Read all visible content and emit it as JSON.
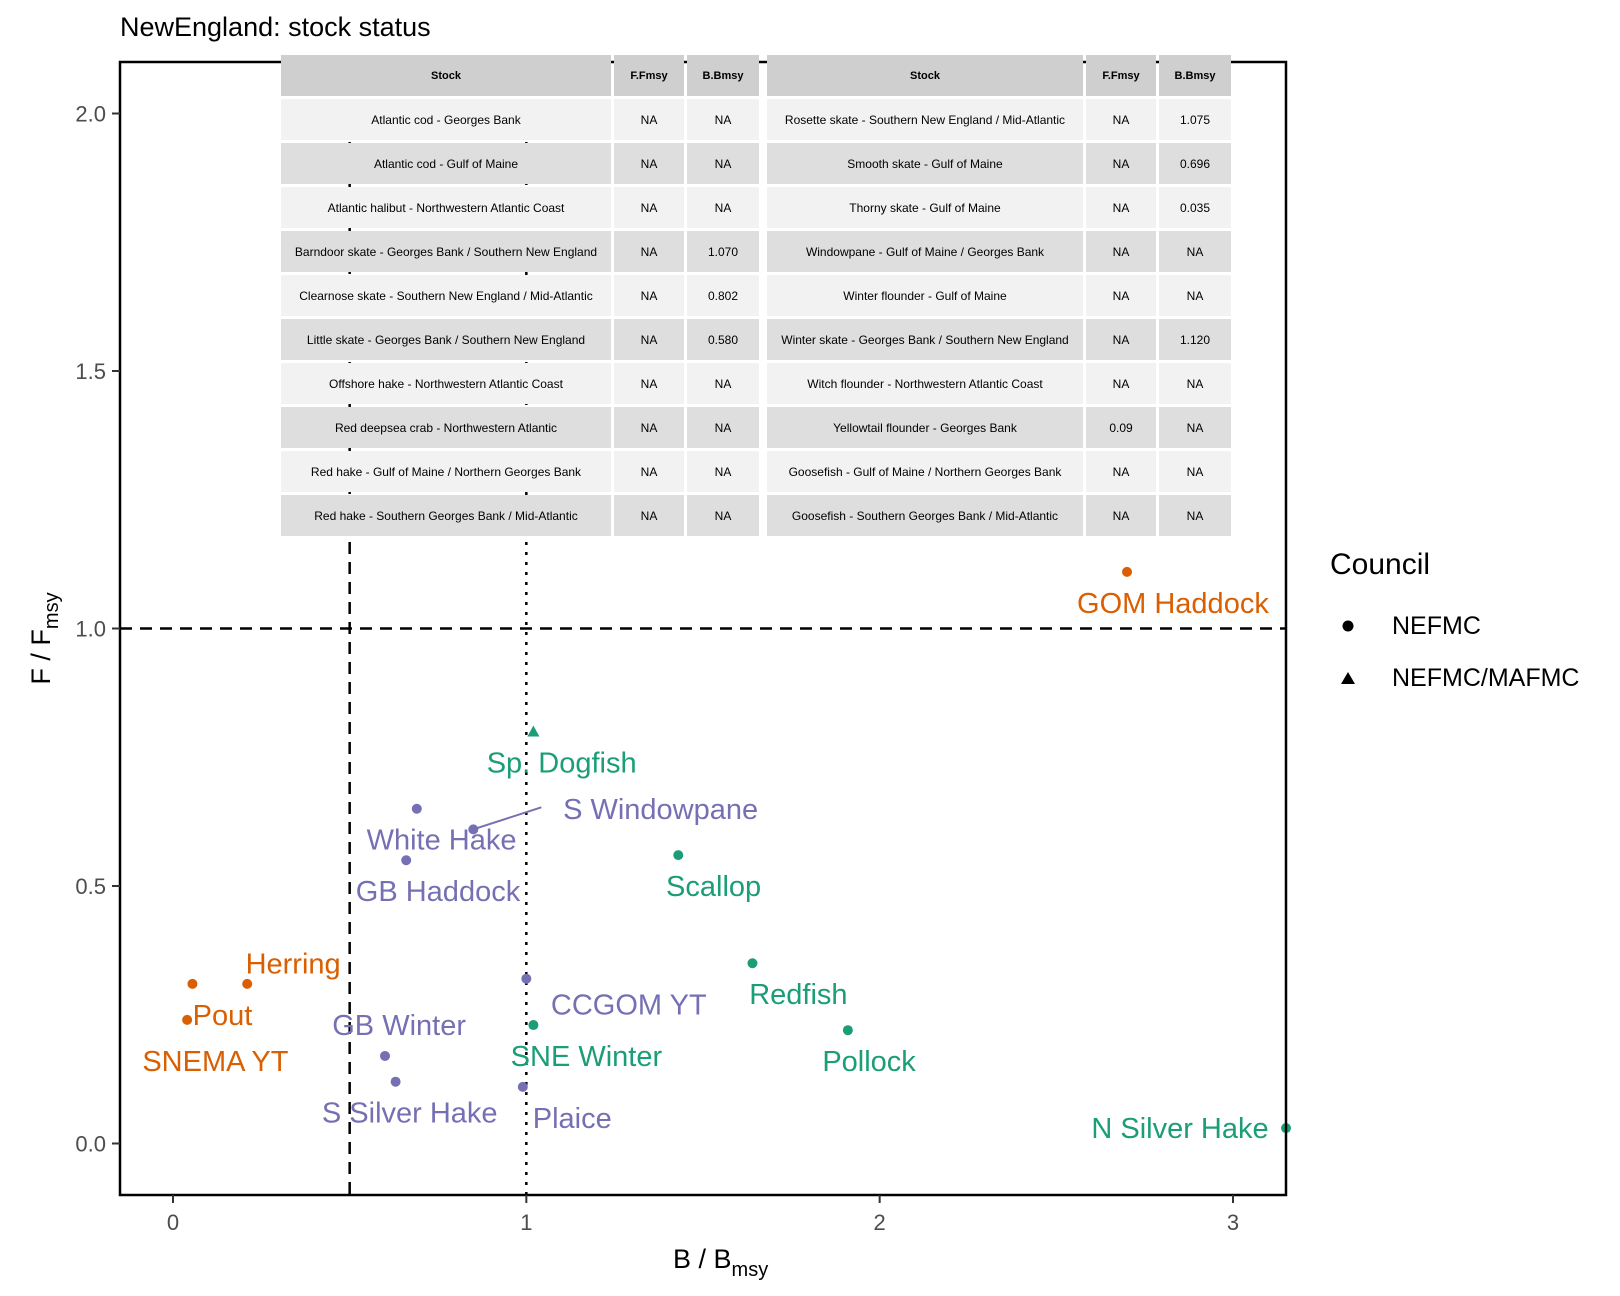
{
  "title": "NewEngland: stock status",
  "colors": {
    "nefmc_orange": "#D95F02",
    "nefmc_green": "#1B9E77",
    "nefmc_purple": "#7570B3",
    "refline": "#000000"
  },
  "legend": {
    "title": "Council",
    "items": [
      {
        "label": "NEFMC",
        "shape": "circle"
      },
      {
        "label": "NEFMC/MAFMC",
        "shape": "triangle"
      }
    ]
  },
  "table": {
    "headers": [
      "Stock",
      "F.Fmsy",
      "B.Bmsy",
      "Stock",
      "F.Fmsy",
      "B.Bmsy"
    ],
    "rows": [
      [
        "Atlantic cod - Georges Bank",
        "NA",
        "NA",
        "Rosette skate - Southern New England / Mid-Atlantic",
        "NA",
        "1.075"
      ],
      [
        "Atlantic cod - Gulf of Maine",
        "NA",
        "NA",
        "Smooth skate - Gulf of Maine",
        "NA",
        "0.696"
      ],
      [
        "Atlantic halibut - Northwestern Atlantic Coast",
        "NA",
        "NA",
        "Thorny skate - Gulf of Maine",
        "NA",
        "0.035"
      ],
      [
        "Barndoor skate - Georges Bank / Southern New England",
        "NA",
        "1.070",
        "Windowpane - Gulf of Maine / Georges Bank",
        "NA",
        "NA"
      ],
      [
        "Clearnose skate - Southern New England / Mid-Atlantic",
        "NA",
        "0.802",
        "Winter flounder - Gulf of Maine",
        "NA",
        "NA"
      ],
      [
        "Little skate - Georges Bank / Southern New England",
        "NA",
        "0.580",
        "Winter skate - Georges Bank / Southern New England",
        "NA",
        "1.120"
      ],
      [
        "Offshore hake - Northwestern Atlantic Coast",
        "NA",
        "NA",
        "Witch flounder - Northwestern Atlantic Coast",
        "NA",
        "NA"
      ],
      [
        "Red deepsea crab - Northwestern Atlantic",
        "NA",
        "NA",
        "Yellowtail flounder - Georges Bank",
        "0.09",
        "NA"
      ],
      [
        "Red hake - Gulf of Maine / Northern Georges Bank",
        "NA",
        "NA",
        "Goosefish - Gulf of Maine / Northern Georges Bank",
        "NA",
        "NA"
      ],
      [
        "Red hake - Southern Georges Bank / Mid-Atlantic",
        "NA",
        "NA",
        "Goosefish - Southern Georges Bank / Mid-Atlantic",
        "NA",
        "NA"
      ]
    ]
  },
  "chart_data": {
    "type": "scatter",
    "title": "NewEngland: stock status",
    "xlabel": {
      "main": "B",
      "sub": "msy",
      "full": "B/Bmsy"
    },
    "ylabel": {
      "main": "F",
      "sub": "msy",
      "full": "F/Fmsy"
    },
    "xlim": [
      -0.15,
      3.15
    ],
    "ylim": [
      -0.1,
      2.1
    ],
    "x_ticks": [
      0,
      1,
      2,
      3
    ],
    "x_tick_labels": [
      "0",
      "1",
      "2",
      "3"
    ],
    "y_ticks": [
      0.0,
      0.5,
      1.0,
      1.5,
      2.0
    ],
    "y_tick_labels": [
      "0.0",
      "0.5",
      "1.0",
      "1.5",
      "2.0"
    ],
    "reference_lines": [
      {
        "orientation": "horizontal",
        "value": 1.0,
        "style": "dashed"
      },
      {
        "orientation": "vertical",
        "value": 0.5,
        "style": "dashed"
      },
      {
        "orientation": "vertical",
        "value": 1.0,
        "style": "dotted"
      }
    ],
    "points": [
      {
        "label": "GOM Haddock",
        "x": 2.7,
        "y": 1.11,
        "color": "#D95F02",
        "council": "NEFMC",
        "label_pos": [
          2.83,
          1.05
        ]
      },
      {
        "label": "Herring",
        "x": 0.21,
        "y": 0.31,
        "color": "#D95F02",
        "council": "NEFMC",
        "label_pos": [
          0.34,
          0.35
        ]
      },
      {
        "label": "Pout",
        "x": 0.055,
        "y": 0.31,
        "color": "#D95F02",
        "council": "NEFMC",
        "label_pos": [
          0.14,
          0.25
        ]
      },
      {
        "label": "SNEMA YT",
        "x": 0.04,
        "y": 0.24,
        "color": "#D95F02",
        "council": "NEFMC",
        "label_pos": [
          0.12,
          0.16
        ]
      },
      {
        "label": "Sp. Dogfish",
        "x": 1.02,
        "y": 0.8,
        "color": "#1B9E77",
        "council": "NEFMC/MAFMC",
        "label_pos": [
          1.1,
          0.74
        ]
      },
      {
        "label": "Scallop",
        "x": 1.43,
        "y": 0.56,
        "color": "#1B9E77",
        "council": "NEFMC",
        "label_pos": [
          1.53,
          0.5
        ]
      },
      {
        "label": "Redfish",
        "x": 1.64,
        "y": 0.35,
        "color": "#1B9E77",
        "council": "NEFMC",
        "label_pos": [
          1.77,
          0.29
        ]
      },
      {
        "label": "Pollock",
        "x": 1.91,
        "y": 0.22,
        "color": "#1B9E77",
        "council": "NEFMC",
        "label_pos": [
          1.97,
          0.16
        ]
      },
      {
        "label": "SNE Winter",
        "x": 1.02,
        "y": 0.23,
        "color": "#1B9E77",
        "council": "NEFMC",
        "label_pos": [
          1.17,
          0.17
        ]
      },
      {
        "label": "N Silver Hake",
        "x": 3.15,
        "y": 0.03,
        "color": "#1B9E77",
        "council": "NEFMC",
        "label_pos": [
          2.85,
          0.03
        ]
      },
      {
        "label": "White Hake",
        "x": 0.69,
        "y": 0.65,
        "color": "#7570B3",
        "council": "NEFMC",
        "label_pos": [
          0.76,
          0.59
        ]
      },
      {
        "label": "S Windowpane",
        "x": 0.85,
        "y": 0.61,
        "color": "#7570B3",
        "council": "NEFMC",
        "label_pos": [
          1.38,
          0.65
        ]
      },
      {
        "label": "GB Haddock",
        "x": 0.66,
        "y": 0.55,
        "color": "#7570B3",
        "council": "NEFMC",
        "label_pos": [
          0.75,
          0.49
        ]
      },
      {
        "label": "CCGOM YT",
        "x": 1.0,
        "y": 0.32,
        "color": "#7570B3",
        "council": "NEFMC",
        "label_pos": [
          1.29,
          0.27
        ]
      },
      {
        "label": "GB Winter",
        "x": 0.6,
        "y": 0.17,
        "color": "#7570B3",
        "council": "NEFMC",
        "label_pos": [
          0.64,
          0.23
        ]
      },
      {
        "label": "S Silver Hake",
        "x": 0.63,
        "y": 0.12,
        "color": "#7570B3",
        "council": "NEFMC",
        "label_pos": [
          0.67,
          0.06
        ]
      },
      {
        "label": "Plaice",
        "x": 0.99,
        "y": 0.11,
        "color": "#7570B3",
        "council": "NEFMC",
        "label_pos": [
          1.13,
          0.05
        ]
      }
    ]
  }
}
